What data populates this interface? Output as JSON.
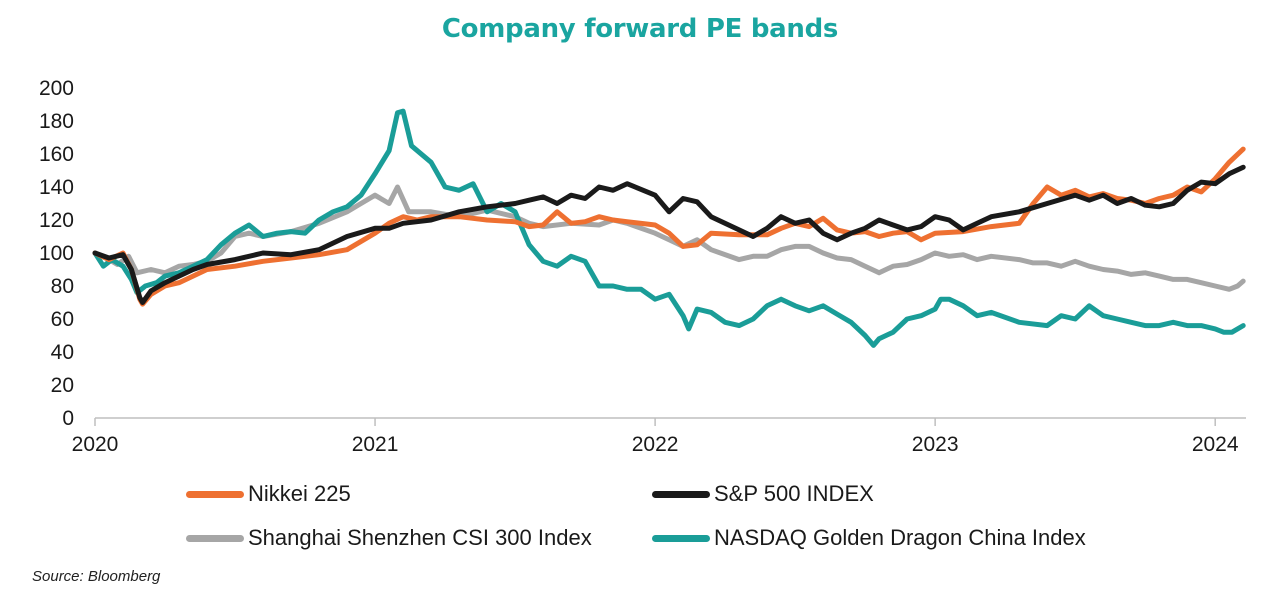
{
  "chart_data": {
    "type": "line",
    "title": "Company forward PE bands",
    "x_tick_labels": [
      "2020",
      "2021",
      "2022",
      "2023",
      "2024"
    ],
    "x_range": [
      2020.0,
      2024.11
    ],
    "y_tick_labels": [
      "0",
      "20",
      "40",
      "60",
      "80",
      "100",
      "120",
      "140",
      "160",
      "180",
      "200"
    ],
    "ylim": [
      0,
      200
    ],
    "grid": false,
    "legend_position": "bottom",
    "series": [
      {
        "name": "Nikkei 225",
        "color": "#ee7031",
        "points": [
          [
            2020.0,
            100
          ],
          [
            2020.05,
            96
          ],
          [
            2020.1,
            100
          ],
          [
            2020.13,
            90
          ],
          [
            2020.16,
            72
          ],
          [
            2020.17,
            69
          ],
          [
            2020.2,
            75
          ],
          [
            2020.25,
            80
          ],
          [
            2020.3,
            82
          ],
          [
            2020.35,
            86
          ],
          [
            2020.4,
            90
          ],
          [
            2020.5,
            92
          ],
          [
            2020.6,
            95
          ],
          [
            2020.7,
            97
          ],
          [
            2020.8,
            99
          ],
          [
            2020.9,
            102
          ],
          [
            2021.0,
            112
          ],
          [
            2021.05,
            118
          ],
          [
            2021.1,
            122
          ],
          [
            2021.15,
            120
          ],
          [
            2021.2,
            122
          ],
          [
            2021.3,
            122
          ],
          [
            2021.4,
            120
          ],
          [
            2021.5,
            119
          ],
          [
            2021.55,
            116
          ],
          [
            2021.6,
            117
          ],
          [
            2021.65,
            125
          ],
          [
            2021.7,
            118
          ],
          [
            2021.75,
            119
          ],
          [
            2021.8,
            122
          ],
          [
            2021.85,
            120
          ],
          [
            2021.9,
            119
          ],
          [
            2022.0,
            117
          ],
          [
            2022.05,
            112
          ],
          [
            2022.1,
            104
          ],
          [
            2022.15,
            105
          ],
          [
            2022.2,
            112
          ],
          [
            2022.3,
            111
          ],
          [
            2022.4,
            111
          ],
          [
            2022.45,
            115
          ],
          [
            2022.5,
            118
          ],
          [
            2022.55,
            116
          ],
          [
            2022.6,
            121
          ],
          [
            2022.65,
            114
          ],
          [
            2022.7,
            112
          ],
          [
            2022.75,
            113
          ],
          [
            2022.8,
            110
          ],
          [
            2022.85,
            112
          ],
          [
            2022.9,
            113
          ],
          [
            2022.95,
            108
          ],
          [
            2023.0,
            112
          ],
          [
            2023.1,
            113
          ],
          [
            2023.2,
            116
          ],
          [
            2023.3,
            118
          ],
          [
            2023.35,
            130
          ],
          [
            2023.4,
            140
          ],
          [
            2023.45,
            135
          ],
          [
            2023.5,
            138
          ],
          [
            2023.55,
            134
          ],
          [
            2023.6,
            136
          ],
          [
            2023.65,
            133
          ],
          [
            2023.7,
            132
          ],
          [
            2023.75,
            130
          ],
          [
            2023.8,
            133
          ],
          [
            2023.85,
            135
          ],
          [
            2023.9,
            140
          ],
          [
            2023.95,
            137
          ],
          [
            2024.0,
            145
          ],
          [
            2024.05,
            155
          ],
          [
            2024.1,
            163
          ]
        ]
      },
      {
        "name": "S&P 500 INDEX",
        "color": "#1a1a1a",
        "points": [
          [
            2020.0,
            100
          ],
          [
            2020.05,
            97
          ],
          [
            2020.1,
            99
          ],
          [
            2020.13,
            90
          ],
          [
            2020.16,
            73
          ],
          [
            2020.17,
            70
          ],
          [
            2020.2,
            77
          ],
          [
            2020.25,
            82
          ],
          [
            2020.3,
            86
          ],
          [
            2020.35,
            90
          ],
          [
            2020.4,
            93
          ],
          [
            2020.5,
            96
          ],
          [
            2020.6,
            100
          ],
          [
            2020.7,
            99
          ],
          [
            2020.8,
            102
          ],
          [
            2020.9,
            110
          ],
          [
            2021.0,
            115
          ],
          [
            2021.05,
            115
          ],
          [
            2021.1,
            118
          ],
          [
            2021.2,
            120
          ],
          [
            2021.3,
            125
          ],
          [
            2021.4,
            128
          ],
          [
            2021.5,
            130
          ],
          [
            2021.55,
            132
          ],
          [
            2021.6,
            134
          ],
          [
            2021.65,
            130
          ],
          [
            2021.7,
            135
          ],
          [
            2021.75,
            133
          ],
          [
            2021.8,
            140
          ],
          [
            2021.85,
            138
          ],
          [
            2021.9,
            142
          ],
          [
            2022.0,
            135
          ],
          [
            2022.05,
            125
          ],
          [
            2022.1,
            133
          ],
          [
            2022.15,
            131
          ],
          [
            2022.2,
            122
          ],
          [
            2022.3,
            114
          ],
          [
            2022.35,
            110
          ],
          [
            2022.4,
            115
          ],
          [
            2022.45,
            122
          ],
          [
            2022.5,
            118
          ],
          [
            2022.55,
            120
          ],
          [
            2022.6,
            112
          ],
          [
            2022.65,
            108
          ],
          [
            2022.7,
            112
          ],
          [
            2022.75,
            115
          ],
          [
            2022.8,
            120
          ],
          [
            2022.85,
            117
          ],
          [
            2022.9,
            114
          ],
          [
            2022.95,
            116
          ],
          [
            2023.0,
            122
          ],
          [
            2023.05,
            120
          ],
          [
            2023.1,
            114
          ],
          [
            2023.15,
            118
          ],
          [
            2023.2,
            122
          ],
          [
            2023.3,
            125
          ],
          [
            2023.4,
            130
          ],
          [
            2023.5,
            135
          ],
          [
            2023.55,
            132
          ],
          [
            2023.6,
            135
          ],
          [
            2023.65,
            130
          ],
          [
            2023.7,
            133
          ],
          [
            2023.75,
            129
          ],
          [
            2023.8,
            128
          ],
          [
            2023.85,
            130
          ],
          [
            2023.9,
            138
          ],
          [
            2023.95,
            143
          ],
          [
            2024.0,
            142
          ],
          [
            2024.05,
            148
          ],
          [
            2024.1,
            152
          ]
        ]
      },
      {
        "name": "Shanghai Shenzhen CSI 300 Index",
        "color": "#a6a6a6",
        "points": [
          [
            2020.0,
            100
          ],
          [
            2020.05,
            96
          ],
          [
            2020.08,
            93
          ],
          [
            2020.12,
            98
          ],
          [
            2020.15,
            88
          ],
          [
            2020.2,
            90
          ],
          [
            2020.25,
            88
          ],
          [
            2020.3,
            92
          ],
          [
            2020.35,
            93
          ],
          [
            2020.4,
            95
          ],
          [
            2020.45,
            100
          ],
          [
            2020.5,
            110
          ],
          [
            2020.55,
            112
          ],
          [
            2020.6,
            110
          ],
          [
            2020.7,
            113
          ],
          [
            2020.8,
            118
          ],
          [
            2020.9,
            125
          ],
          [
            2020.95,
            130
          ],
          [
            2021.0,
            135
          ],
          [
            2021.05,
            130
          ],
          [
            2021.08,
            140
          ],
          [
            2021.12,
            125
          ],
          [
            2021.2,
            125
          ],
          [
            2021.3,
            122
          ],
          [
            2021.4,
            126
          ],
          [
            2021.5,
            122
          ],
          [
            2021.55,
            118
          ],
          [
            2021.6,
            116
          ],
          [
            2021.7,
            118
          ],
          [
            2021.8,
            117
          ],
          [
            2021.85,
            120
          ],
          [
            2021.9,
            118
          ],
          [
            2022.0,
            112
          ],
          [
            2022.05,
            108
          ],
          [
            2022.1,
            104
          ],
          [
            2022.15,
            108
          ],
          [
            2022.2,
            102
          ],
          [
            2022.3,
            96
          ],
          [
            2022.35,
            98
          ],
          [
            2022.4,
            98
          ],
          [
            2022.45,
            102
          ],
          [
            2022.5,
            104
          ],
          [
            2022.55,
            104
          ],
          [
            2022.6,
            100
          ],
          [
            2022.65,
            97
          ],
          [
            2022.7,
            96
          ],
          [
            2022.75,
            92
          ],
          [
            2022.8,
            88
          ],
          [
            2022.85,
            92
          ],
          [
            2022.9,
            93
          ],
          [
            2022.95,
            96
          ],
          [
            2023.0,
            100
          ],
          [
            2023.05,
            98
          ],
          [
            2023.1,
            99
          ],
          [
            2023.15,
            96
          ],
          [
            2023.2,
            98
          ],
          [
            2023.3,
            96
          ],
          [
            2023.35,
            94
          ],
          [
            2023.4,
            94
          ],
          [
            2023.45,
            92
          ],
          [
            2023.5,
            95
          ],
          [
            2023.55,
            92
          ],
          [
            2023.6,
            90
          ],
          [
            2023.65,
            89
          ],
          [
            2023.7,
            87
          ],
          [
            2023.75,
            88
          ],
          [
            2023.8,
            86
          ],
          [
            2023.85,
            84
          ],
          [
            2023.9,
            84
          ],
          [
            2023.95,
            82
          ],
          [
            2024.0,
            80
          ],
          [
            2024.05,
            78
          ],
          [
            2024.08,
            80
          ],
          [
            2024.1,
            83
          ]
        ]
      },
      {
        "name": "NASDAQ Golden Dragon China Index",
        "color": "#1a9d98",
        "points": [
          [
            2020.0,
            100
          ],
          [
            2020.03,
            92
          ],
          [
            2020.06,
            96
          ],
          [
            2020.1,
            92
          ],
          [
            2020.13,
            84
          ],
          [
            2020.15,
            76
          ],
          [
            2020.18,
            80
          ],
          [
            2020.22,
            82
          ],
          [
            2020.25,
            86
          ],
          [
            2020.3,
            88
          ],
          [
            2020.35,
            92
          ],
          [
            2020.4,
            96
          ],
          [
            2020.45,
            105
          ],
          [
            2020.5,
            112
          ],
          [
            2020.55,
            117
          ],
          [
            2020.6,
            110
          ],
          [
            2020.65,
            112
          ],
          [
            2020.7,
            113
          ],
          [
            2020.75,
            112
          ],
          [
            2020.8,
            120
          ],
          [
            2020.85,
            125
          ],
          [
            2020.9,
            128
          ],
          [
            2020.95,
            135
          ],
          [
            2021.0,
            148
          ],
          [
            2021.05,
            162
          ],
          [
            2021.08,
            185
          ],
          [
            2021.1,
            186
          ],
          [
            2021.13,
            165
          ],
          [
            2021.2,
            155
          ],
          [
            2021.25,
            140
          ],
          [
            2021.3,
            138
          ],
          [
            2021.35,
            142
          ],
          [
            2021.4,
            125
          ],
          [
            2021.45,
            130
          ],
          [
            2021.5,
            125
          ],
          [
            2021.55,
            105
          ],
          [
            2021.6,
            95
          ],
          [
            2021.65,
            92
          ],
          [
            2021.7,
            98
          ],
          [
            2021.75,
            95
          ],
          [
            2021.8,
            80
          ],
          [
            2021.85,
            80
          ],
          [
            2021.9,
            78
          ],
          [
            2021.95,
            78
          ],
          [
            2022.0,
            72
          ],
          [
            2022.05,
            75
          ],
          [
            2022.1,
            62
          ],
          [
            2022.12,
            54
          ],
          [
            2022.15,
            66
          ],
          [
            2022.2,
            64
          ],
          [
            2022.25,
            58
          ],
          [
            2022.3,
            56
          ],
          [
            2022.35,
            60
          ],
          [
            2022.4,
            68
          ],
          [
            2022.45,
            72
          ],
          [
            2022.5,
            68
          ],
          [
            2022.55,
            65
          ],
          [
            2022.6,
            68
          ],
          [
            2022.65,
            63
          ],
          [
            2022.7,
            58
          ],
          [
            2022.75,
            50
          ],
          [
            2022.78,
            44
          ],
          [
            2022.8,
            48
          ],
          [
            2022.85,
            52
          ],
          [
            2022.9,
            60
          ],
          [
            2022.95,
            62
          ],
          [
            2023.0,
            66
          ],
          [
            2023.02,
            72
          ],
          [
            2023.05,
            72
          ],
          [
            2023.1,
            68
          ],
          [
            2023.15,
            62
          ],
          [
            2023.2,
            64
          ],
          [
            2023.3,
            58
          ],
          [
            2023.4,
            56
          ],
          [
            2023.45,
            62
          ],
          [
            2023.5,
            60
          ],
          [
            2023.55,
            68
          ],
          [
            2023.6,
            62
          ],
          [
            2023.65,
            60
          ],
          [
            2023.7,
            58
          ],
          [
            2023.75,
            56
          ],
          [
            2023.8,
            56
          ],
          [
            2023.85,
            58
          ],
          [
            2023.9,
            56
          ],
          [
            2023.95,
            56
          ],
          [
            2024.0,
            54
          ],
          [
            2024.03,
            52
          ],
          [
            2024.06,
            52
          ],
          [
            2024.1,
            56
          ]
        ]
      }
    ]
  },
  "legend": {
    "items": [
      {
        "label": "Nikkei 225",
        "color": "#ee7031"
      },
      {
        "label": "S&P 500 INDEX",
        "color": "#1a1a1a"
      },
      {
        "label": "Shanghai Shenzhen CSI 300 Index",
        "color": "#a6a6a6"
      },
      {
        "label": "NASDAQ Golden Dragon China Index",
        "color": "#1a9d98"
      }
    ]
  },
  "source_note": "Source: Bloomberg"
}
